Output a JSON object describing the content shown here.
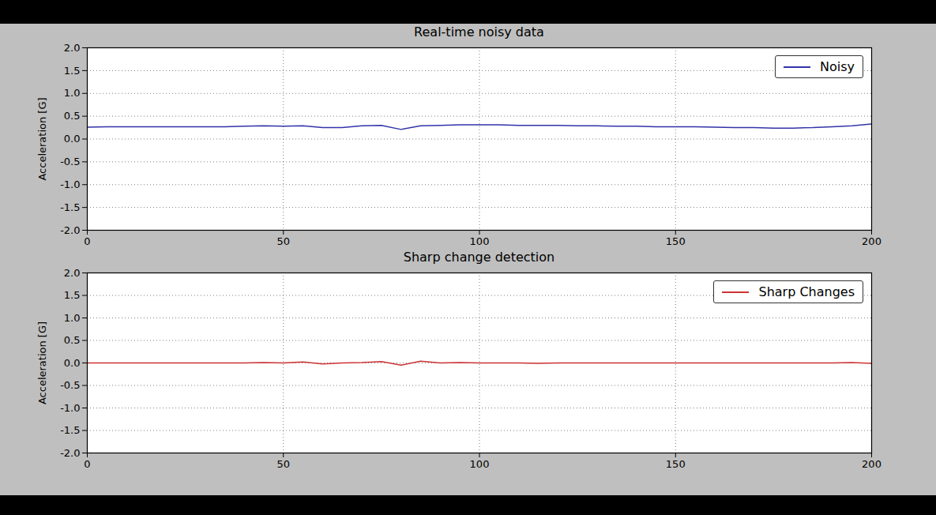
{
  "chart_data": [
    {
      "type": "line",
      "title": "Real-time noisy data",
      "y_label": "Acceleration [G]",
      "x": [
        0,
        5,
        10,
        15,
        20,
        25,
        30,
        35,
        40,
        45,
        50,
        55,
        60,
        65,
        70,
        75,
        80,
        85,
        90,
        95,
        100,
        105,
        110,
        115,
        120,
        125,
        130,
        135,
        140,
        145,
        150,
        155,
        160,
        165,
        170,
        175,
        180,
        185,
        190,
        195,
        200
      ],
      "series": [
        {
          "name": "Noisy",
          "color": "#3333aa",
          "line_style": "solid",
          "values": [
            0.26,
            0.27,
            0.27,
            0.27,
            0.27,
            0.27,
            0.27,
            0.27,
            0.28,
            0.29,
            0.28,
            0.29,
            0.25,
            0.25,
            0.29,
            0.3,
            0.21,
            0.29,
            0.3,
            0.31,
            0.31,
            0.31,
            0.3,
            0.3,
            0.3,
            0.29,
            0.29,
            0.28,
            0.28,
            0.27,
            0.27,
            0.27,
            0.26,
            0.25,
            0.25,
            0.24,
            0.24,
            0.25,
            0.27,
            0.29,
            0.33
          ]
        }
      ],
      "xlim": [
        0,
        200
      ],
      "xticks": [
        0,
        50,
        100,
        150,
        200
      ],
      "ylim": [
        -2,
        2
      ],
      "yticks": [
        {
          "value": -2,
          "label": "-2.0"
        },
        -1.5,
        {
          "value": -1,
          "label": "-1.0"
        },
        -0.5,
        {
          "value": 0,
          "label": "0.0"
        },
        0.5,
        {
          "value": 1,
          "label": "1.0"
        },
        1.5,
        {
          "value": 2,
          "label": "2.0"
        }
      ],
      "grid": true,
      "legend": "upper right"
    },
    {
      "type": "line",
      "title": "Sharp change detection",
      "y_label": "Acceleration [G]",
      "x": [
        0,
        5,
        10,
        15,
        20,
        25,
        30,
        35,
        40,
        45,
        50,
        55,
        60,
        65,
        70,
        75,
        80,
        85,
        90,
        95,
        100,
        105,
        110,
        115,
        120,
        125,
        130,
        135,
        140,
        145,
        150,
        155,
        160,
        165,
        170,
        175,
        180,
        185,
        190,
        195,
        200
      ],
      "series": [
        {
          "name": "Sharp Changes",
          "color": "#cc3333",
          "line_style": "solid",
          "values": [
            0.0,
            0.0,
            0.0,
            0.0,
            0.0,
            0.0,
            0.0,
            0.0,
            0.0,
            0.01,
            0.0,
            0.02,
            -0.02,
            0.0,
            0.01,
            0.03,
            -0.05,
            0.04,
            0.0,
            0.01,
            0.0,
            0.0,
            0.0,
            -0.01,
            0.0,
            0.0,
            0.0,
            0.0,
            0.0,
            0.0,
            0.0,
            0.0,
            0.0,
            0.0,
            0.0,
            0.0,
            0.0,
            0.0,
            0.0,
            0.01,
            -0.01
          ]
        }
      ],
      "xlim": [
        0,
        200
      ],
      "xticks": [
        0,
        50,
        100,
        150,
        200
      ],
      "ylim": [
        -2,
        2
      ],
      "yticks": [
        {
          "value": -2,
          "label": "-2.0"
        },
        -1.5,
        {
          "value": -1,
          "label": "-1.0"
        },
        -0.5,
        {
          "value": 0,
          "label": "0.0"
        },
        0.5,
        {
          "value": 1,
          "label": "1.0"
        },
        1.5,
        {
          "value": 2,
          "label": "2.0"
        }
      ],
      "grid": true,
      "legend": "upper right"
    }
  ]
}
